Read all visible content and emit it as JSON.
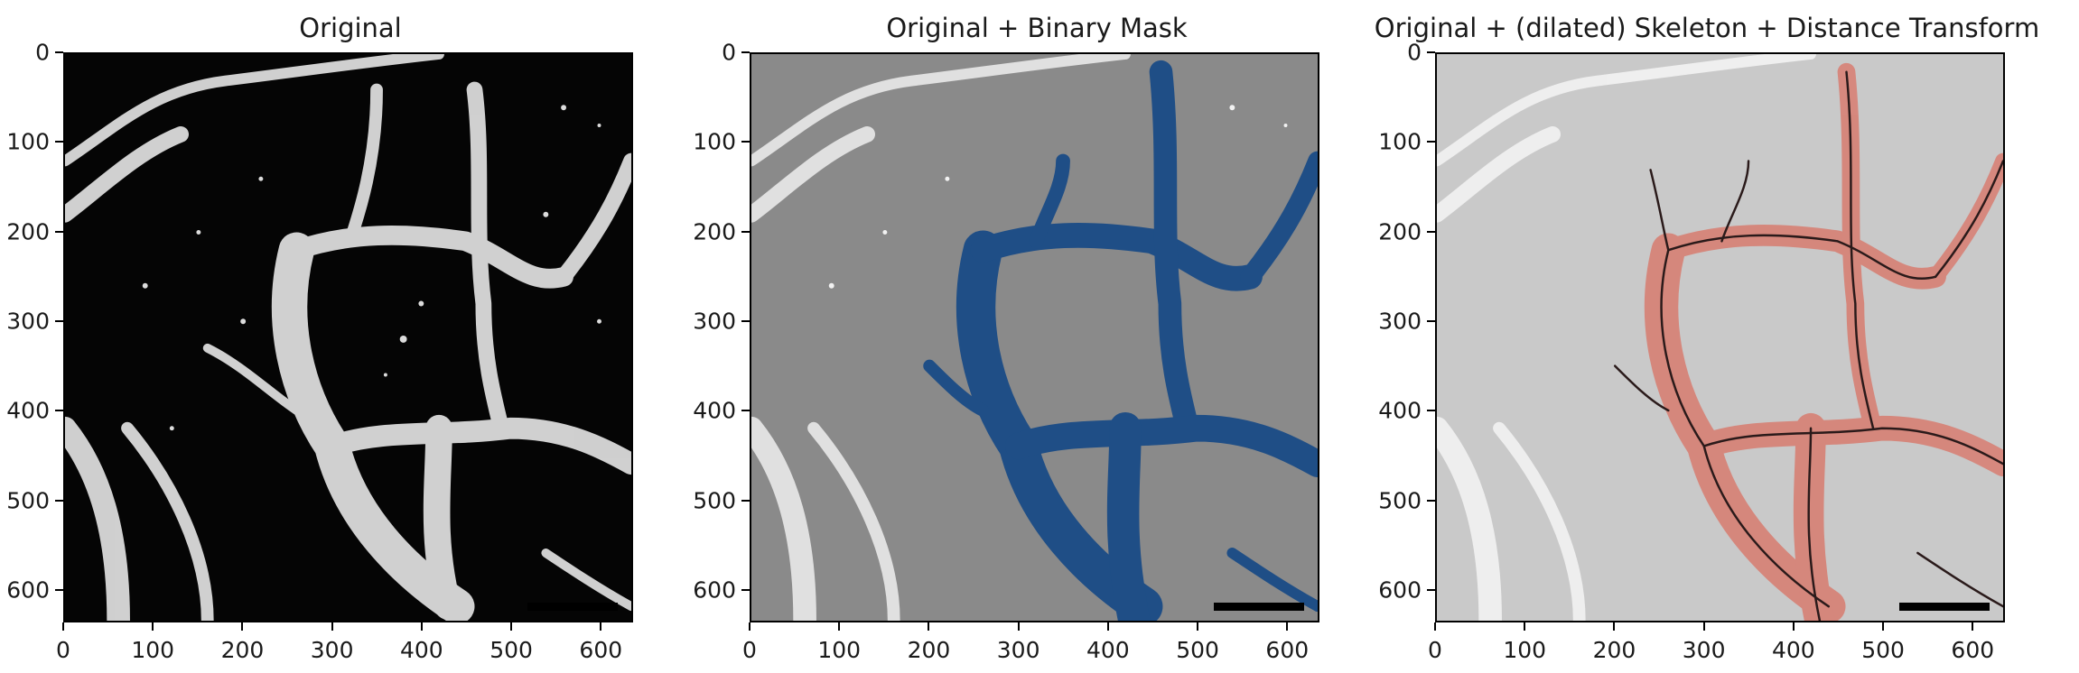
{
  "panels": [
    {
      "title": "Original"
    },
    {
      "title": "Original + Binary Mask"
    },
    {
      "title": "Original + (dilated) Skeleton + Distance Transform"
    }
  ],
  "axes": {
    "xticks": [
      "0",
      "100",
      "200",
      "300",
      "400",
      "500",
      "600"
    ],
    "yticks": [
      "0",
      "100",
      "200",
      "300",
      "400",
      "500",
      "600"
    ],
    "xlim": [
      0,
      636
    ],
    "ylim": [
      636,
      0
    ]
  },
  "colors": {
    "original_bg": "#050505",
    "mask_bg": "#8a8a8a",
    "mask_fill": "#1f4e86",
    "skeleton_bg": "#c9c9c9",
    "distance_fill": "#e0523f",
    "skeleton_line": "#2a1a1a",
    "vessel": "#e8e8e8"
  },
  "scalebar": {
    "visible": true
  }
}
